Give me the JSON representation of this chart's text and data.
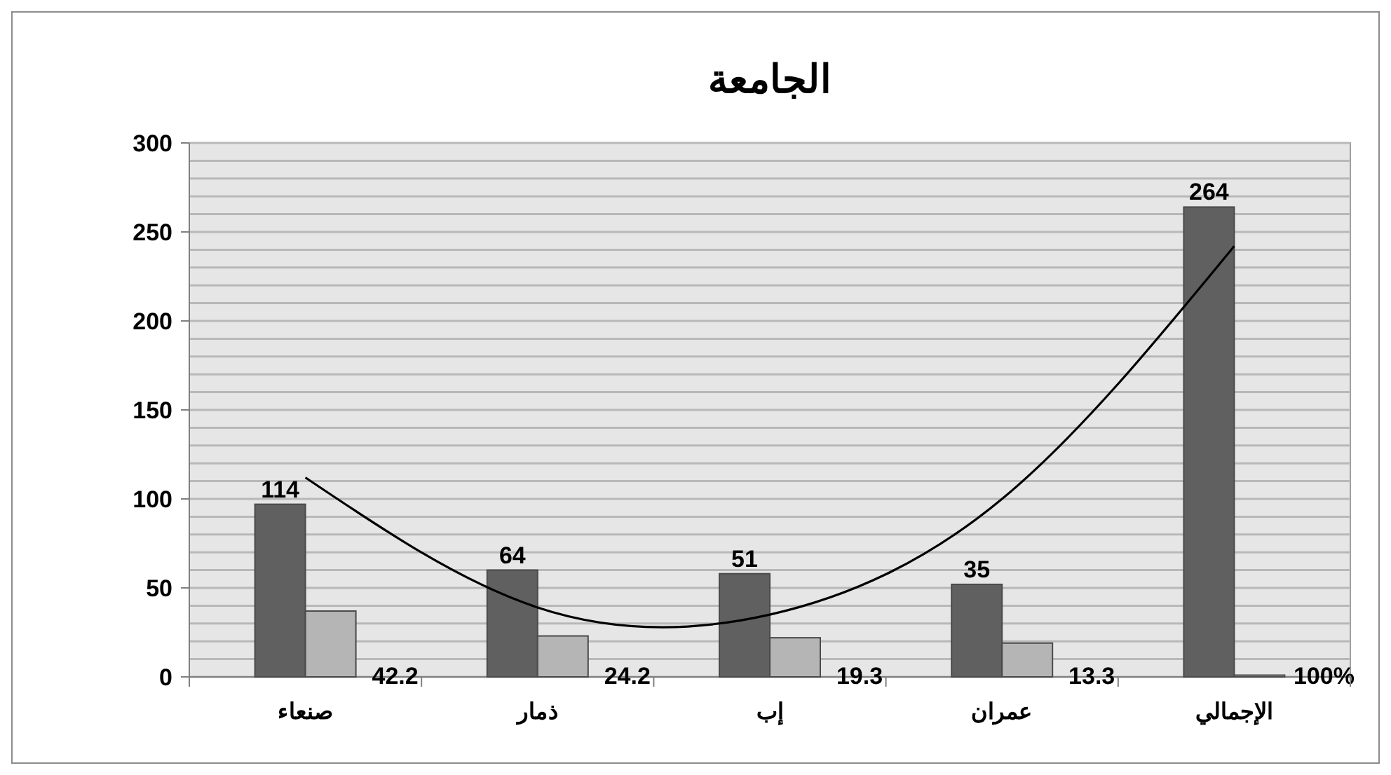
{
  "chart_data": {
    "type": "bar",
    "title": "الجامعة",
    "categories": [
      "صنعاء",
      "ذمار",
      "إب",
      "عمران",
      "الإجمالي"
    ],
    "series": [
      {
        "color": "#606060",
        "values": [
          97,
          60,
          58,
          52,
          264
        ]
      },
      {
        "color": "#b5b5b5",
        "values": [
          37,
          23,
          22,
          19,
          1
        ]
      },
      {
        "type": "line",
        "color": "#000000",
        "values": [
          112,
          39,
          35,
          100,
          242
        ]
      }
    ],
    "annotations": [
      {
        "text": "114",
        "x": "صنعاء",
        "y": 97
      },
      {
        "text": "64",
        "x": "ذمار",
        "y": 60
      },
      {
        "text": "51",
        "x": "إب",
        "y": 58
      },
      {
        "text": "35",
        "x": "عمران",
        "y": 52
      },
      {
        "text": "264",
        "x": "الإجمالي",
        "y": 264
      },
      {
        "text": "42.2",
        "x": "صنعاء",
        "y": 0
      },
      {
        "text": "24.2",
        "x": "ذمار",
        "y": 0
      },
      {
        "text": "19.3",
        "x": "إب",
        "y": 0
      },
      {
        "text": "13.3",
        "x": "عمران",
        "y": 0
      },
      {
        "text": "100%",
        "x": "الإجمالي",
        "y": 0
      }
    ],
    "ylim": [
      0,
      300
    ],
    "yticks": [
      0,
      {
        "value": 10,
        "label": null
      },
      {
        "value": 20,
        "label": null
      },
      {
        "value": 30,
        "label": null
      },
      {
        "value": 40,
        "label": null
      },
      50,
      {
        "value": 60,
        "label": null
      },
      {
        "value": 70,
        "label": null
      },
      {
        "value": 80,
        "label": null
      },
      {
        "value": 90,
        "label": null
      },
      100,
      {
        "value": 110,
        "label": null
      },
      {
        "value": 120,
        "label": null
      },
      {
        "value": 130,
        "label": null
      },
      {
        "value": 140,
        "label": null
      },
      150,
      {
        "value": 160,
        "label": null
      },
      {
        "value": 170,
        "label": null
      },
      {
        "value": 180,
        "label": null
      },
      {
        "value": 190,
        "label": null
      },
      200,
      {
        "value": 210,
        "label": null
      },
      {
        "value": 220,
        "label": null
      },
      {
        "value": 230,
        "label": null
      },
      {
        "value": 240,
        "label": null
      },
      250,
      {
        "value": 260,
        "label": null
      },
      {
        "value": 270,
        "label": null
      },
      {
        "value": 280,
        "label": null
      },
      {
        "value": 290,
        "label": null
      },
      300
    ],
    "grid": "y"
  }
}
